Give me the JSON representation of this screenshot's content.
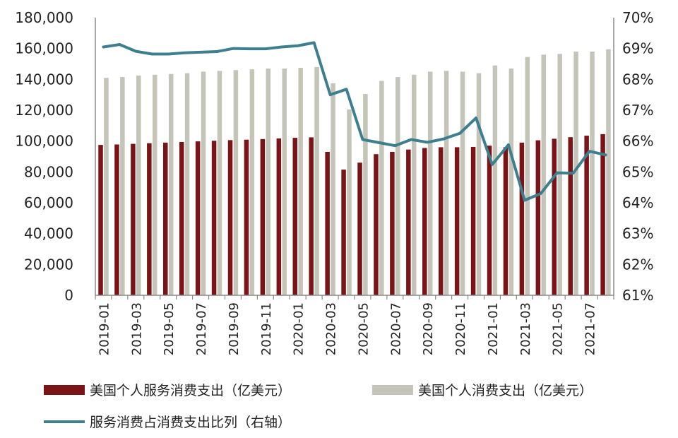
{
  "chart_data": {
    "type": "bar",
    "title": "",
    "xlabel": "",
    "ylabel": "",
    "ylim": [
      0,
      180000
    ],
    "y2lim": [
      0.61,
      0.7
    ],
    "grid": false,
    "legend_position": "bottom",
    "y_ticks": [
      "0",
      "20,000",
      "40,000",
      "60,000",
      "80,000",
      "100,000",
      "120,000",
      "140,000",
      "160,000",
      "180,000"
    ],
    "y2_ticks": [
      "61%",
      "62%",
      "63%",
      "64%",
      "65%",
      "66%",
      "67%",
      "68%",
      "69%",
      "70%"
    ],
    "categories": [
      "2019-01",
      "2019-02",
      "2019-03",
      "2019-04",
      "2019-05",
      "2019-06",
      "2019-07",
      "2019-08",
      "2019-09",
      "2019-10",
      "2019-11",
      "2019-12",
      "2020-01",
      "2020-02",
      "2020-03",
      "2020-04",
      "2020-05",
      "2020-06",
      "2020-07",
      "2020-08",
      "2020-09",
      "2020-10",
      "2020-11",
      "2020-12",
      "2021-01",
      "2021-02",
      "2021-03",
      "2021-04",
      "2021-05",
      "2021-06",
      "2021-07",
      "2021-08"
    ],
    "x_tick_labels": [
      "2019-01",
      "2019-03",
      "2019-05",
      "2019-07",
      "2019-09",
      "2019-11",
      "2020-01",
      "2020-03",
      "2020-05",
      "2020-07",
      "2020-09",
      "2020-11",
      "2021-01",
      "2021-03",
      "2021-05",
      "2021-07"
    ],
    "series": [
      {
        "name": "美国个人服务消费支出（亿美元）",
        "type": "bar",
        "axis": "left",
        "color": "#7b1416",
        "values": [
          97500,
          97800,
          98200,
          98600,
          99000,
          99400,
          99800,
          100200,
          100600,
          100900,
          101300,
          101700,
          102100,
          102400,
          93000,
          81500,
          86000,
          91500,
          93000,
          94500,
          95500,
          96000,
          96000,
          96200,
          97000,
          96000,
          99000,
          100500,
          101500,
          102500,
          103500,
          104500
        ]
      },
      {
        "name": "美国个人消费支出（亿美元）",
        "type": "bar",
        "axis": "left",
        "color": "#c5c4b9",
        "values": [
          141000,
          141500,
          142500,
          143000,
          143500,
          144000,
          145000,
          145500,
          146000,
          146500,
          147000,
          147000,
          147500,
          148000,
          137500,
          120500,
          130500,
          139000,
          141500,
          143000,
          145000,
          145500,
          145000,
          144000,
          149000,
          147000,
          154500,
          156000,
          156500,
          158000,
          158000,
          159500
        ]
      },
      {
        "name": "服务消费占消费支出比列（右轴）",
        "type": "line",
        "axis": "right",
        "color": "#3d7f8f",
        "values": [
          0.6905,
          0.6913,
          0.6891,
          0.6882,
          0.6882,
          0.6886,
          0.6888,
          0.689,
          0.69,
          0.6899,
          0.6899,
          0.6905,
          0.6909,
          0.6919,
          0.675,
          0.6768,
          0.6605,
          0.6595,
          0.6585,
          0.6605,
          0.6596,
          0.6607,
          0.6625,
          0.6675,
          0.6524,
          0.6588,
          0.6408,
          0.643,
          0.6497,
          0.6496,
          0.6567,
          0.6555
        ]
      }
    ]
  }
}
